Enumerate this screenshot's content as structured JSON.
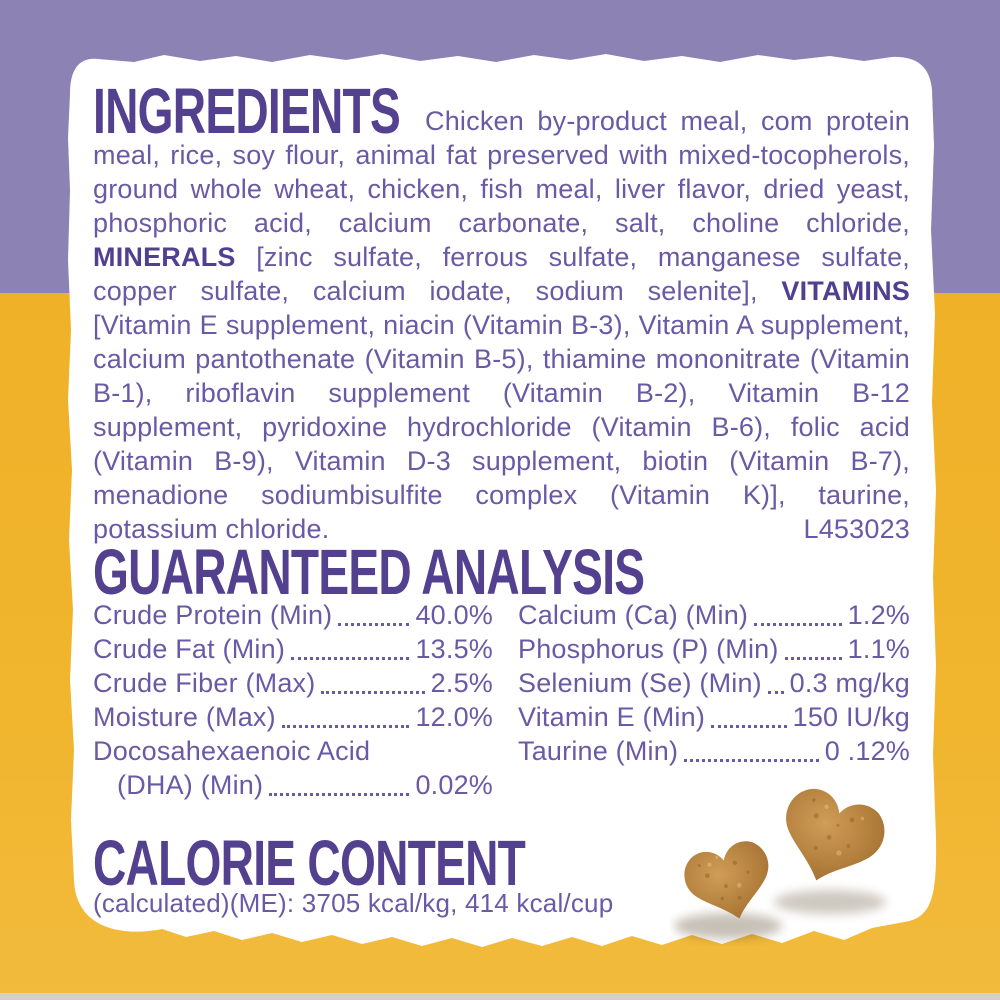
{
  "colors": {
    "background_purple": "#8d82b4",
    "background_yellow": "#f1b32b",
    "panel_white": "#ffffff",
    "heading_purple": "#53408e",
    "body_purple": "#6a5aa6",
    "kibble_tan": "#b5813e"
  },
  "ingredients": {
    "heading": "INGREDIENTS",
    "segments": [
      {
        "text": "Chicken by-product meal, com protein meal, rice, soy flour, animal fat preserved with mixed-tocopherols, ground whole wheat, chicken, fish meal, liver flavor, dried yeast, phosphoric acid, calcium carbonate, salt, choline chloride, ",
        "bold": false
      },
      {
        "text": "MINERALS",
        "bold": true
      },
      {
        "text": " [zinc sulfate, ferrous sulfate, manganese sulfate, copper sulfate, calcium iodate, sodium selenite], ",
        "bold": false
      },
      {
        "text": "VITAMINS",
        "bold": true
      },
      {
        "text": " [Vitamin E supplement, niacin (Vitamin B-3), Vitamin A supplement, calcium pantothenate (Vitamin B-5), thiamine mononitrate (Vitamin B-1), riboflavin supplement (Vitamin B-2), Vitamin B-12 supplement, pyridoxine hydrochloride (Vitamin B-6), folic acid (Vitamin B-9), Vitamin D-3 supplement, biotin (Vitamin B-7), menadione sodiumbisulfite complex (Vitamin K)], taurine, potassium chloride.",
        "bold": false
      }
    ],
    "lot_code": "L453023"
  },
  "guaranteed_analysis": {
    "heading": "GUARANTEED ANALYSIS",
    "left_rows": [
      {
        "label": "Crude Protein (Min)",
        "value": "40.0%"
      },
      {
        "label": "Crude Fat (Min)",
        "value": "13.5%"
      },
      {
        "label": "Crude Fiber (Max)",
        "value": "2.5%"
      },
      {
        "label": "Moisture (Max)",
        "value": "12.0%"
      },
      {
        "label": "Docosahexaenoic Acid",
        "value": ""
      },
      {
        "label": "(DHA) (Min)",
        "value": "0.02%",
        "indent": true
      }
    ],
    "right_rows": [
      {
        "label": "Calcium (Ca) (Min)",
        "value": "1.2%"
      },
      {
        "label": "Phosphorus (P) (Min)",
        "value": "1.1%"
      },
      {
        "label": "Selenium (Se) (Min)",
        "value": "0.3 mg/kg"
      },
      {
        "label": "Vitamin E (Min)",
        "value": "150 IU/kg"
      },
      {
        "label": "Taurine (Min)",
        "value": "0 .12%"
      }
    ]
  },
  "calorie_content": {
    "heading": "CALORIE CONTENT",
    "line": "(calculated)(ME): 3705 kcal/kg, 414 kcal/cup"
  },
  "decor": {
    "kibble_hearts": {
      "shape": "heart",
      "count": 2,
      "color": "#b5813e"
    }
  }
}
